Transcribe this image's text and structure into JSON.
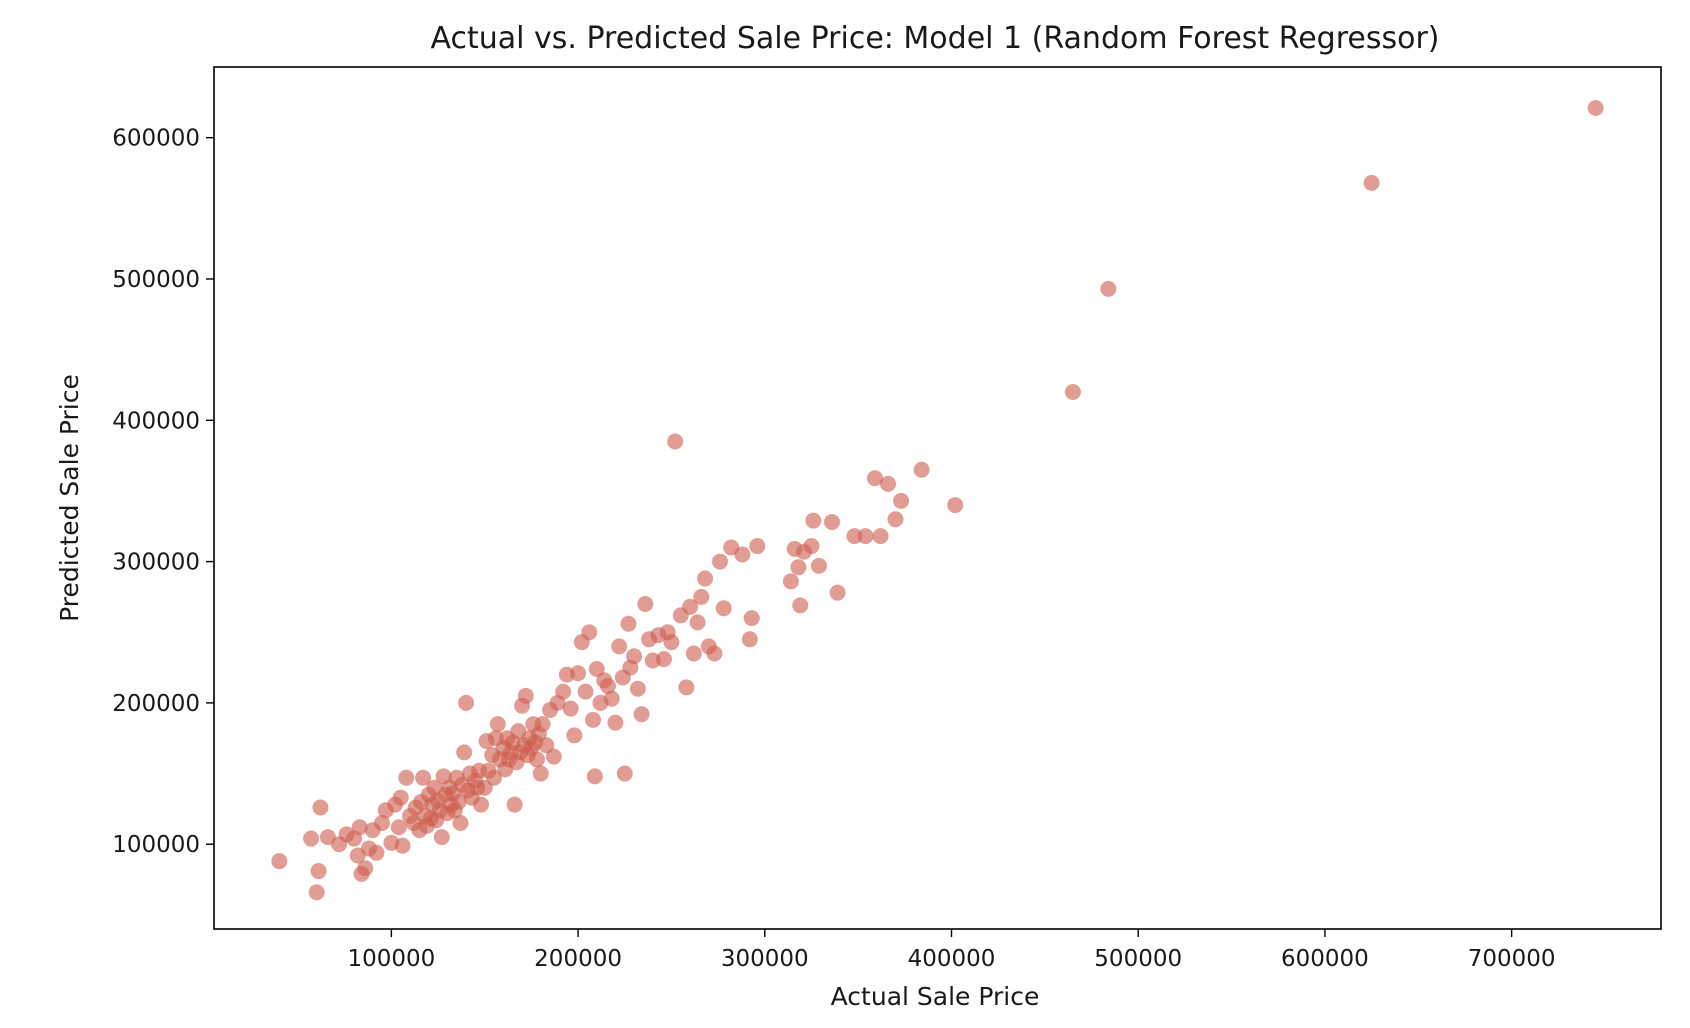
{
  "chart_data": {
    "type": "scatter",
    "title": "Actual vs. Predicted Sale Price: Model 1 (Random Forest Regressor)",
    "xlabel": "Actual Sale Price",
    "ylabel": "Predicted Sale Price",
    "xlim": [
      5000,
      780000
    ],
    "ylim": [
      40000,
      650000
    ],
    "xticks": [
      100000,
      200000,
      300000,
      400000,
      500000,
      600000,
      700000
    ],
    "xtick_labels": [
      "100000",
      "200000",
      "300000",
      "400000",
      "500000",
      "600000",
      "700000"
    ],
    "yticks": [
      100000,
      200000,
      300000,
      400000,
      500000,
      600000
    ],
    "ytick_labels": [
      "100000",
      "200000",
      "300000",
      "400000",
      "500000",
      "600000"
    ],
    "grid": false,
    "legend": "none",
    "marker_color": "#cd5c4c",
    "marker_alpha": 0.6,
    "points": [
      [
        40000,
        88000
      ],
      [
        57000,
        104000
      ],
      [
        60000,
        66000
      ],
      [
        61000,
        81000
      ],
      [
        62000,
        126000
      ],
      [
        66000,
        105000
      ],
      [
        72000,
        100000
      ],
      [
        76000,
        107000
      ],
      [
        80000,
        104000
      ],
      [
        82000,
        92000
      ],
      [
        83000,
        112000
      ],
      [
        84000,
        79000
      ],
      [
        86000,
        83000
      ],
      [
        88000,
        97000
      ],
      [
        90000,
        110000
      ],
      [
        92000,
        94000
      ],
      [
        95000,
        115000
      ],
      [
        97000,
        124000
      ],
      [
        100000,
        101000
      ],
      [
        102000,
        128000
      ],
      [
        104000,
        112000
      ],
      [
        105000,
        133000
      ],
      [
        106000,
        99000
      ],
      [
        108000,
        147000
      ],
      [
        110000,
        120000
      ],
      [
        112000,
        115000
      ],
      [
        113000,
        126000
      ],
      [
        115000,
        110000
      ],
      [
        116000,
        130000
      ],
      [
        117000,
        147000
      ],
      [
        118000,
        120000
      ],
      [
        119000,
        113000
      ],
      [
        120000,
        135000
      ],
      [
        121000,
        118000
      ],
      [
        122000,
        128000
      ],
      [
        123000,
        140000
      ],
      [
        124000,
        117000
      ],
      [
        125000,
        131000
      ],
      [
        126000,
        124000
      ],
      [
        127000,
        105000
      ],
      [
        128000,
        148000
      ],
      [
        129000,
        135000
      ],
      [
        130000,
        122000
      ],
      [
        131000,
        140000
      ],
      [
        132000,
        128000
      ],
      [
        133000,
        136000
      ],
      [
        134000,
        124000
      ],
      [
        135000,
        147000
      ],
      [
        136000,
        130000
      ],
      [
        137000,
        115000
      ],
      [
        138000,
        142000
      ],
      [
        139000,
        165000
      ],
      [
        140000,
        200000
      ],
      [
        141000,
        138000
      ],
      [
        142000,
        150000
      ],
      [
        143000,
        133000
      ],
      [
        145000,
        145000
      ],
      [
        146000,
        140000
      ],
      [
        147000,
        152000
      ],
      [
        148000,
        128000
      ],
      [
        150000,
        140000
      ],
      [
        151000,
        173000
      ],
      [
        152000,
        152000
      ],
      [
        154000,
        163000
      ],
      [
        155000,
        147000
      ],
      [
        156000,
        175000
      ],
      [
        157000,
        185000
      ],
      [
        158000,
        160000
      ],
      [
        160000,
        168000
      ],
      [
        161000,
        153000
      ],
      [
        162000,
        175000
      ],
      [
        163000,
        160000
      ],
      [
        164000,
        165000
      ],
      [
        165000,
        172000
      ],
      [
        166000,
        128000
      ],
      [
        167000,
        158000
      ],
      [
        168000,
        180000
      ],
      [
        169000,
        165000
      ],
      [
        170000,
        198000
      ],
      [
        171000,
        170000
      ],
      [
        172000,
        205000
      ],
      [
        173000,
        163000
      ],
      [
        174000,
        175000
      ],
      [
        175000,
        168000
      ],
      [
        176000,
        185000
      ],
      [
        177000,
        172000
      ],
      [
        178000,
        160000
      ],
      [
        179000,
        178000
      ],
      [
        180000,
        150000
      ],
      [
        181000,
        185000
      ],
      [
        183000,
        170000
      ],
      [
        185000,
        195000
      ],
      [
        187000,
        162000
      ],
      [
        189000,
        200000
      ],
      [
        192000,
        208000
      ],
      [
        194000,
        220000
      ],
      [
        196000,
        196000
      ],
      [
        198000,
        177000
      ],
      [
        200000,
        221000
      ],
      [
        202000,
        243000
      ],
      [
        204000,
        208000
      ],
      [
        206000,
        250000
      ],
      [
        208000,
        188000
      ],
      [
        209000,
        148000
      ],
      [
        210000,
        224000
      ],
      [
        212000,
        200000
      ],
      [
        214000,
        216000
      ],
      [
        216000,
        212000
      ],
      [
        218000,
        203000
      ],
      [
        220000,
        186000
      ],
      [
        222000,
        240000
      ],
      [
        224000,
        218000
      ],
      [
        225000,
        150000
      ],
      [
        227000,
        256000
      ],
      [
        228000,
        225000
      ],
      [
        230000,
        233000
      ],
      [
        232000,
        210000
      ],
      [
        234000,
        192000
      ],
      [
        236000,
        270000
      ],
      [
        238000,
        245000
      ],
      [
        240000,
        230000
      ],
      [
        243000,
        248000
      ],
      [
        246000,
        231000
      ],
      [
        248000,
        250000
      ],
      [
        250000,
        243000
      ],
      [
        252000,
        385000
      ],
      [
        255000,
        262000
      ],
      [
        258000,
        211000
      ],
      [
        260000,
        268000
      ],
      [
        262000,
        235000
      ],
      [
        264000,
        257000
      ],
      [
        266000,
        275000
      ],
      [
        268000,
        288000
      ],
      [
        270000,
        240000
      ],
      [
        273000,
        235000
      ],
      [
        276000,
        300000
      ],
      [
        278000,
        267000
      ],
      [
        282000,
        310000
      ],
      [
        288000,
        305000
      ],
      [
        292000,
        245000
      ],
      [
        293000,
        260000
      ],
      [
        296000,
        311000
      ],
      [
        314000,
        286000
      ],
      [
        316000,
        309000
      ],
      [
        318000,
        296000
      ],
      [
        319000,
        269000
      ],
      [
        321000,
        307000
      ],
      [
        325000,
        311000
      ],
      [
        326000,
        329000
      ],
      [
        329000,
        297000
      ],
      [
        336000,
        328000
      ],
      [
        339000,
        278000
      ],
      [
        348000,
        318000
      ],
      [
        354000,
        318000
      ],
      [
        359000,
        359000
      ],
      [
        362000,
        318000
      ],
      [
        366000,
        355000
      ],
      [
        370000,
        330000
      ],
      [
        373000,
        343000
      ],
      [
        384000,
        365000
      ],
      [
        402000,
        340000
      ],
      [
        465000,
        420000
      ],
      [
        484000,
        493000
      ],
      [
        625000,
        568000
      ],
      [
        745000,
        621000
      ]
    ]
  }
}
